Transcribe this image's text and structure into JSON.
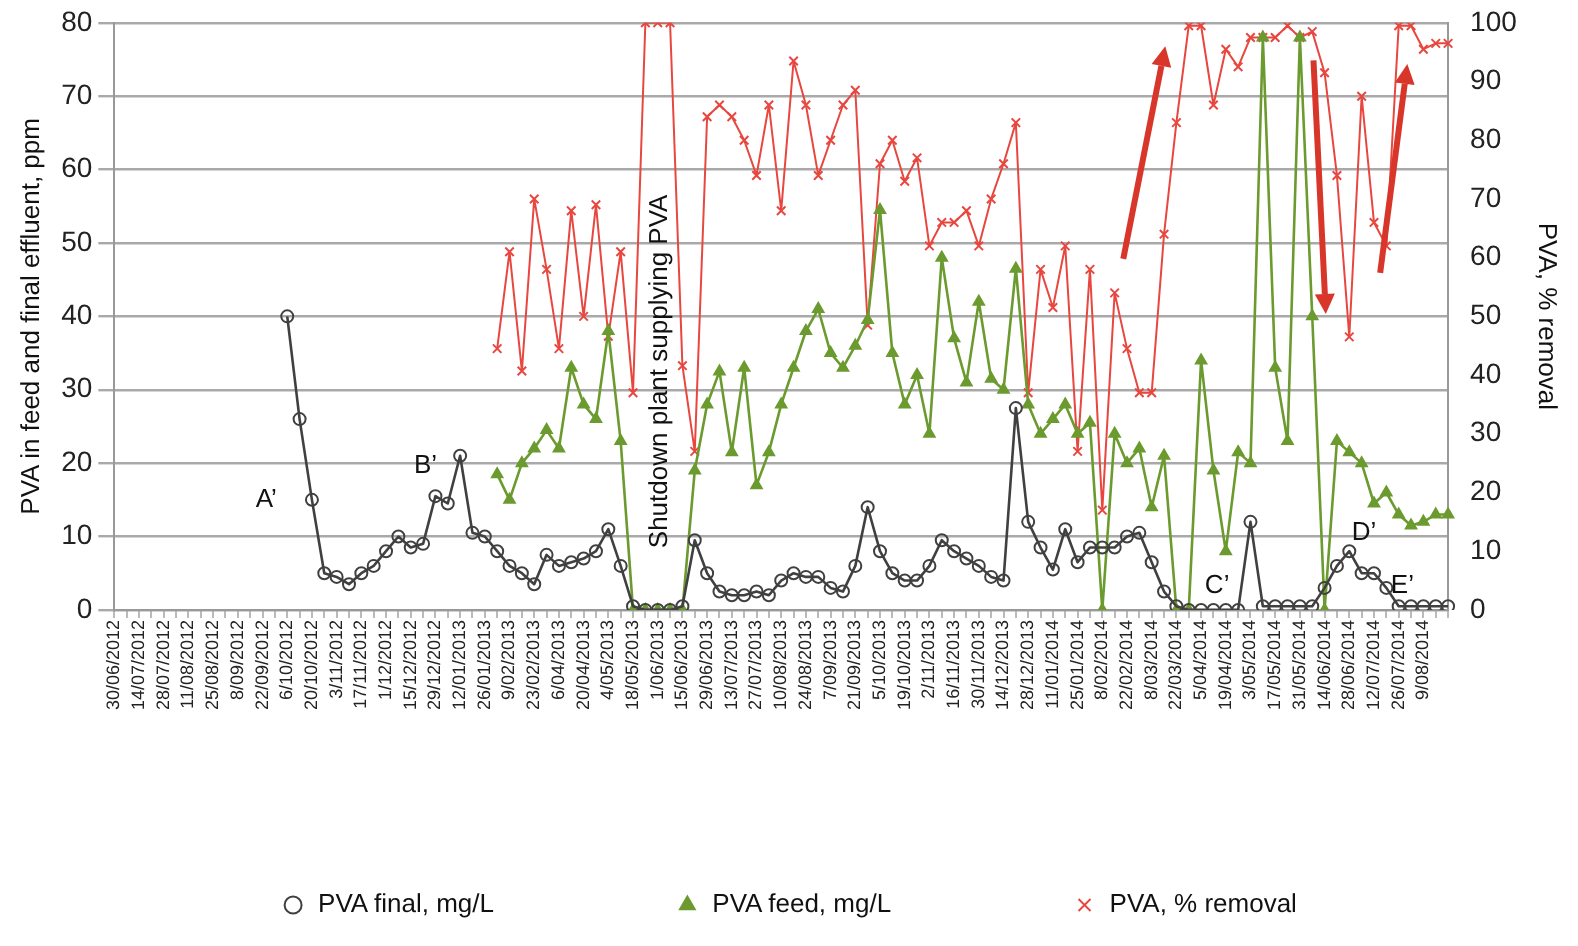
{
  "chart_data": {
    "type": "line",
    "ylabel": "PVA in feed and final effluent, ppm",
    "y2label": "PVA, % removal",
    "categories": [
      "30/06/2012",
      null,
      "14/07/2012",
      null,
      "28/07/2012",
      null,
      "11/08/2012",
      null,
      "25/08/2012",
      null,
      "8/09/2012",
      null,
      "22/09/2012",
      null,
      "6/10/2012",
      null,
      "20/10/2012",
      null,
      "3/11/2012",
      null,
      "17/11/2012",
      null,
      "1/12/2012",
      null,
      "15/12/2012",
      null,
      "29/12/2012",
      null,
      "12/01/2013",
      null,
      "26/01/2013",
      null,
      "9/02/2013",
      null,
      "23/02/2013",
      null,
      "6/04/2013",
      null,
      "20/04/2013",
      null,
      "4/05/2013",
      null,
      "18/05/2013",
      null,
      "1/06/2013",
      null,
      "15/06/2013",
      null,
      "29/06/2013",
      null,
      "13/07/2013",
      null,
      "27/07/2013",
      null,
      "10/08/2013",
      null,
      "24/08/2013",
      null,
      "7/09/2013",
      null,
      "21/09/2013",
      null,
      "5/10/2013",
      null,
      "19/10/2013",
      null,
      "2/11/2013",
      null,
      "16/11/2013",
      null,
      "30/11/2013",
      null,
      "14/12/2013",
      null,
      "28/12/2013",
      null,
      "11/01/2014",
      null,
      "25/01/2014",
      null,
      "8/02/2014",
      null,
      "22/02/2014",
      null,
      "8/03/2014",
      null,
      "22/03/2014",
      null,
      "5/04/2014",
      null,
      "19/04/2014",
      null,
      "3/05/2014",
      null,
      "17/05/2014",
      null,
      "31/05/2014",
      null,
      "14/06/2014",
      null,
      "28/06/2014",
      null,
      "12/07/2014",
      null,
      "26/07/2014",
      null,
      "9/08/2014",
      null,
      null
    ],
    "series": [
      {
        "name": "PVA final, mg/L",
        "color": "#404040",
        "marker": "circle",
        "values": [
          null,
          null,
          null,
          null,
          null,
          null,
          null,
          null,
          null,
          null,
          null,
          null,
          null,
          null,
          40,
          26,
          15,
          5,
          4.5,
          3.5,
          5,
          6,
          8,
          10,
          8.5,
          9,
          15.5,
          14.5,
          21,
          10.5,
          10,
          8,
          6,
          5,
          3.5,
          7.5,
          6,
          6.5,
          7,
          8,
          11,
          6,
          0.5,
          0,
          0,
          0,
          0.5,
          9.5,
          5,
          2.5,
          2,
          2,
          2.5,
          2,
          4,
          5,
          4.5,
          4.5,
          3,
          2.5,
          6,
          14,
          8,
          5,
          4,
          4,
          6,
          9.5,
          8,
          7,
          6,
          4.5,
          4,
          27.5,
          12,
          8.5,
          5.5,
          11,
          6.5,
          8.5,
          8.5,
          8.5,
          10,
          10.5,
          6.5,
          2.5,
          0.5,
          0,
          0,
          0,
          0,
          0,
          12,
          0.5,
          0.5,
          0.5,
          0.5,
          0.5,
          3,
          6,
          8,
          5,
          5,
          3,
          0.5,
          0.5,
          0.5,
          0.5,
          0.5
        ]
      },
      {
        "name": "PVA feed, mg/L",
        "color": "#6b9a2e",
        "marker": "triangle",
        "values": [
          null,
          null,
          null,
          null,
          null,
          null,
          null,
          null,
          null,
          null,
          null,
          null,
          null,
          null,
          null,
          null,
          null,
          null,
          null,
          null,
          null,
          null,
          null,
          null,
          null,
          null,
          null,
          null,
          null,
          null,
          null,
          18.5,
          15,
          20,
          22,
          24.5,
          22,
          33,
          28,
          26,
          38,
          23,
          0,
          0,
          0,
          0,
          0,
          19,
          28,
          32.5,
          21.5,
          33,
          17,
          21.5,
          28,
          33,
          38,
          41,
          35,
          33,
          36,
          39.5,
          54.5,
          35,
          28,
          32,
          24,
          48,
          37,
          31,
          42,
          31.5,
          30,
          46.5,
          28,
          24,
          26,
          28,
          24,
          25.5,
          0,
          24,
          20,
          22,
          14,
          21,
          0,
          0,
          34,
          19,
          8,
          21.5,
          20,
          78,
          33,
          23,
          78,
          40,
          0,
          23,
          21.5,
          20,
          14.5,
          16,
          13,
          11.5,
          12,
          13,
          13
        ]
      },
      {
        "name": "PVA, % removal",
        "color": "#e8473f",
        "marker": "cross",
        "axis": "y2",
        "values": [
          null,
          null,
          null,
          null,
          null,
          null,
          null,
          null,
          null,
          null,
          null,
          null,
          null,
          null,
          null,
          null,
          null,
          null,
          null,
          null,
          null,
          null,
          null,
          null,
          null,
          null,
          null,
          null,
          null,
          null,
          null,
          44.5,
          61,
          40.7,
          70,
          58,
          44.5,
          68,
          50,
          69,
          46.6,
          61,
          37,
          100,
          100,
          100,
          41.6,
          27,
          84,
          86,
          84,
          80,
          74,
          86,
          68,
          93.5,
          86,
          74,
          80,
          86,
          88.5,
          48.5,
          76,
          80,
          73,
          77,
          62,
          66,
          66,
          68,
          62,
          70,
          76,
          83,
          37,
          58,
          51.5,
          62,
          27,
          58,
          17,
          54,
          44.5,
          37,
          37,
          64,
          83,
          99.5,
          99.5,
          86,
          95.5,
          92.5,
          97.5,
          97.5,
          97.5,
          99.5,
          97.5,
          98.5,
          91.5,
          74,
          46.5,
          87.5,
          66,
          62,
          99.5,
          99.5,
          95.5,
          96.5,
          96.5
        ]
      }
    ],
    "ylim": [
      0,
      80
    ],
    "yticks": [
      0,
      10,
      20,
      30,
      40,
      50,
      60,
      70,
      80
    ],
    "y2lim": [
      0,
      100
    ],
    "y2ticks": [
      0,
      10,
      20,
      30,
      40,
      50,
      60,
      70,
      80,
      90,
      100
    ],
    "grid": "y",
    "legend": "bottom",
    "annotations": [
      "A’",
      "B’",
      "C’",
      "D’",
      "E’",
      "Shutdown plant supplying PVA"
    ]
  }
}
